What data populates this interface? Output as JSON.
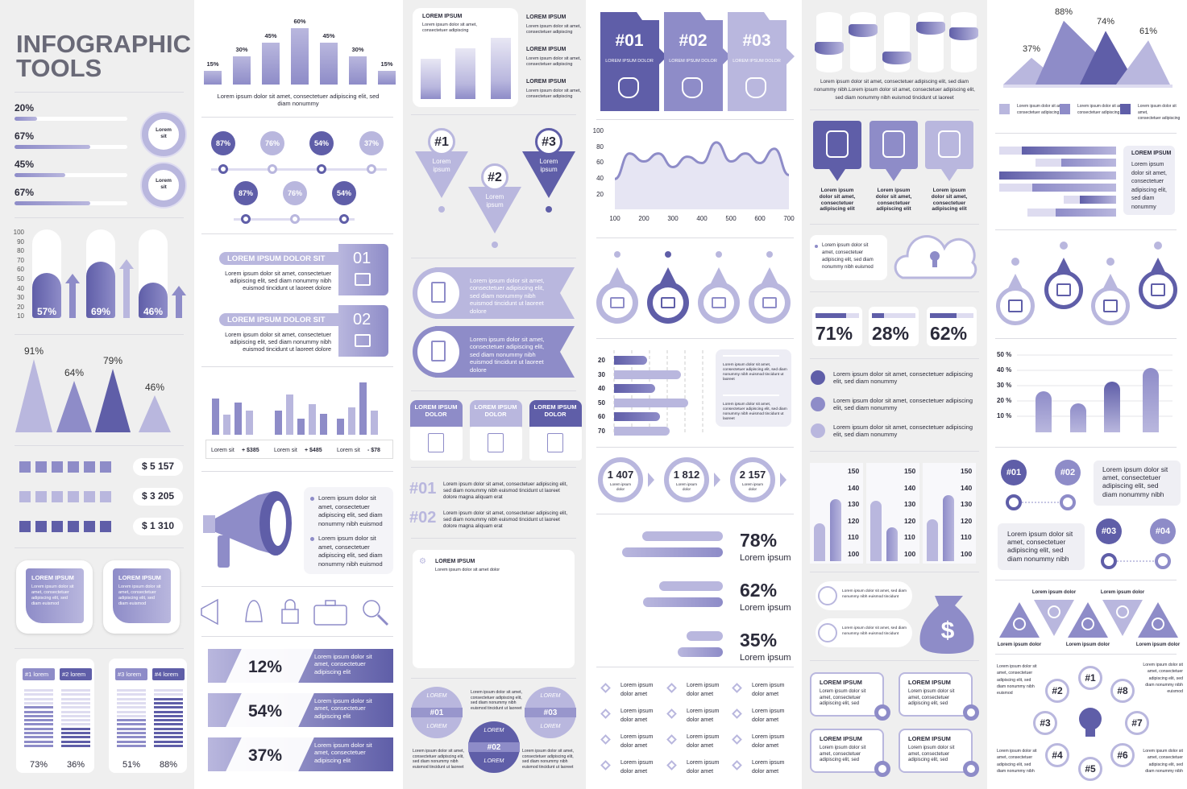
{
  "header": {
    "title_line1": "INFOGRAPHIC",
    "title_line2": "TOOLS"
  },
  "colors": {
    "dark": "#5f5ea8",
    "mid": "#8e8cc8",
    "light": "#b9b7de",
    "pale": "#dedcf0",
    "panel": "#efefef"
  },
  "text": {
    "lorem_ipsum": "Lorem ipsum",
    "lorem_ipsum_caps": "LOREM IPSUM",
    "lorem_ipsum_dolor": "Lorem ipsum dolor",
    "lorem_ipsum_dolor_caps": "LOREM IPSUM DOLOR",
    "lorem_ipsum_dolor_two": "Lorem ipsum\ndolor",
    "lorem_ipsum_dolor_amet": "Lorem ipsum\ndolor amet",
    "lorem_sit": "Lorem\nsit",
    "lorem": "LOREM",
    "short": "Lorem ipsum dolor sit amet,\nconsectetuer adipiscing",
    "card": "Lorem ipsum dolor sit\namet, consectetuer\nadipiscing elit, sed\ndiam euismod",
    "bullet": "Lorem ipsum dolor sit\namet, consectetuer\nadipiscing elit, sed diam\nnonummy nibh euismod",
    "ribbon": "Lorem ipsum dolor sit amet,\nconsectetuer adipiscing elit,\nsed diam nonummy nibh\neuismod tincidunt ut laoreet\ndolore",
    "right_block": "Lorem ipsum dolor sit amet, consectetuer\nadipiscing elit, sed diam nonummy nibh\neuismod tincidunt ut laoreet dolore",
    "numbered": "Lorem ipsum dolor sit amet, consectetuer adipiscing elit,\nsed diam nonummy nibh euismod tincidunt ut laoreet\ndolore magna aliquam erat",
    "banner": "Lorem ipsum dolor sit\namet, consectetuer\nadipiscing elit",
    "callout": "Lorem ipsum\ndolor sit amet,\nconsectetuer\nadipiscing elit",
    "long_bullet": "Lorem ipsum dolor sit amet, consectetuer adipiscing\nelit, sed diam nonummy",
    "cyl_caption": "Lorem ipsum dolor sit amet, consectetuer adipiscing elit, sed diam\nnonummy nibh.Lorem ipsum dolor sit amet, consectetuer adipiscing elit,\nsed diam nonummy nibh euismod tincidunt ut laoreet",
    "bar_caption": "Lorem ipsum dolor sit amet, consectetuer adipiscing elit, sed\ndiam nonummy",
    "box_text": "Lorem ipsum dolor sit amet,\nconsectetuer adipiscing elit, sed diam\nnonummy nibh euismod tincidunt ut\nlaoreet",
    "pill_text": "Lorem ipsum dolor sit amet, sed diam\nnonummy nibh euismod tincidunt",
    "card4": "Lorem ipsum dolor sit\namet, consectetuer\nadipiscing elit, sed",
    "side_box": "Lorem ipsum\ndolor sit amet,\nconsectetuer\nadipiscing elit,\nsed diam\nnonummy",
    "hash_text": "Lorem ipsum dolor sit\namet, consectetuer\nadipiscing elit, sed\ndiam nonummy nibh",
    "bulb_text": "Lorem ipsum dolor sit\namet, consectetuer\nadipiscing elit, sed\ndiam nonummy nibh\neuismod",
    "chart_sub": "Lorem ipsum dolor sit amet dolor",
    "circle_text": "Lorem ipsum dolor sit amet,\nconsectetuer adipiscing elit,\nsed diam nonummy nibh\neuismod tincidunt ut laoreet"
  },
  "col1": {
    "progress": [
      {
        "label": "20%",
        "value": 20
      },
      {
        "label": "67%",
        "value": 67
      },
      {
        "label": "45%",
        "value": 45
      },
      {
        "label": "67%",
        "value": 67
      }
    ],
    "pill_axis": [
      "100",
      "90",
      "80",
      "70",
      "60",
      "50",
      "40",
      "30",
      "20",
      "10"
    ],
    "pill_bars": [
      {
        "label": "57%",
        "value": 57
      },
      {
        "label": "69%",
        "value": 69
      },
      {
        "label": "46%",
        "value": 46
      }
    ],
    "cones": [
      {
        "label": "91%",
        "value": 91
      },
      {
        "label": "64%",
        "value": 64
      },
      {
        "label": "79%",
        "value": 79
      },
      {
        "label": "46%",
        "value": 46
      }
    ],
    "squares": [
      {
        "amount": "$ 5 157"
      },
      {
        "amount": "$ 3 205"
      },
      {
        "amount": "$ 1 310"
      }
    ],
    "stacks": [
      {
        "tag": "#1 lorem",
        "label": "73%",
        "value": 73
      },
      {
        "tag": "#2 lorem",
        "label": "36%",
        "value": 36
      },
      {
        "tag": "#3 lorem",
        "label": "51%",
        "value": 51
      },
      {
        "tag": "#4 lorem",
        "label": "88%",
        "value": 88
      }
    ]
  },
  "col2": {
    "bars": [
      {
        "label": "15%",
        "value": 15
      },
      {
        "label": "30%",
        "value": 30
      },
      {
        "label": "45%",
        "value": 45
      },
      {
        "label": "60%",
        "value": 60
      },
      {
        "label": "45%",
        "value": 45
      },
      {
        "label": "30%",
        "value": 30
      },
      {
        "label": "15%",
        "value": 15
      }
    ],
    "bubbles_row1": [
      "87%",
      "76%",
      "54%",
      "37%"
    ],
    "bubbles_row2": [
      "87%",
      "76%",
      "54%"
    ],
    "numbered": [
      {
        "title": "LOREM IPSUM DOLOR SIT",
        "num": "01"
      },
      {
        "title": "LOREM IPSUM DOLOR SIT",
        "num": "02"
      }
    ],
    "legend": [
      {
        "label": "Lorem sit",
        "delta": "+ $385"
      },
      {
        "label": "Lorem sit",
        "delta": "+ $485"
      },
      {
        "label": "Lorem sit",
        "delta": "- $78"
      }
    ],
    "banners": [
      {
        "value": "12%"
      },
      {
        "value": "54%"
      },
      {
        "value": "37%"
      }
    ]
  },
  "col3": {
    "pins": [
      {
        "num": "#1"
      },
      {
        "num": "#2"
      },
      {
        "num": "#3"
      }
    ],
    "numbered": [
      "#01",
      "#02"
    ],
    "circles": [
      "#01",
      "#02",
      "#03"
    ]
  },
  "col4": {
    "steps": [
      "#01",
      "#02",
      "#03"
    ],
    "area_chart": {
      "type": "area",
      "x": [
        100,
        150,
        200,
        250,
        300,
        350,
        400,
        450,
        500,
        550,
        600,
        650,
        700
      ],
      "y": [
        40,
        72,
        62,
        72,
        55,
        68,
        60,
        86,
        62,
        72,
        60,
        78,
        45
      ],
      "xticks": [
        "100",
        "200",
        "300",
        "400",
        "500",
        "600",
        "700"
      ],
      "yticks": [
        "100",
        "80",
        "60",
        "40",
        "20"
      ]
    },
    "hbar": {
      "categories": [
        "20",
        "30",
        "40",
        "50",
        "60",
        "70"
      ],
      "values": [
        0.45,
        0.9,
        0.55,
        1.0,
        0.62,
        0.75
      ]
    },
    "counters": [
      "1 407",
      "1 812",
      "2 157"
    ],
    "percent_rows": [
      {
        "label": "78%",
        "value": 78
      },
      {
        "label": "62%",
        "value": 62
      },
      {
        "label": "35%",
        "value": 35
      }
    ]
  },
  "col5": {
    "stats": [
      {
        "label": "71%",
        "value": 71
      },
      {
        "label": "28%",
        "value": 28
      },
      {
        "label": "62%",
        "value": 62
      }
    ],
    "column_axis": [
      "150",
      "140",
      "130",
      "120",
      "110",
      "100"
    ]
  },
  "col6": {
    "peaks": [
      {
        "label": "37%",
        "value": 37
      },
      {
        "label": "88%",
        "value": 88
      },
      {
        "label": "74%",
        "value": 74
      },
      {
        "label": "61%",
        "value": 61
      }
    ],
    "bar_chart": {
      "type": "bar",
      "yticks": [
        "50 %",
        "40 %",
        "30 %",
        "20 %",
        "10 %"
      ],
      "values": [
        27,
        19,
        33,
        42
      ],
      "ylim": [
        0,
        50
      ]
    },
    "hashes": [
      "#01",
      "#02",
      "#03",
      "#04"
    ],
    "bulb": [
      "#1",
      "#2",
      "#3",
      "#4",
      "#5",
      "#6",
      "#7",
      "#8"
    ]
  }
}
